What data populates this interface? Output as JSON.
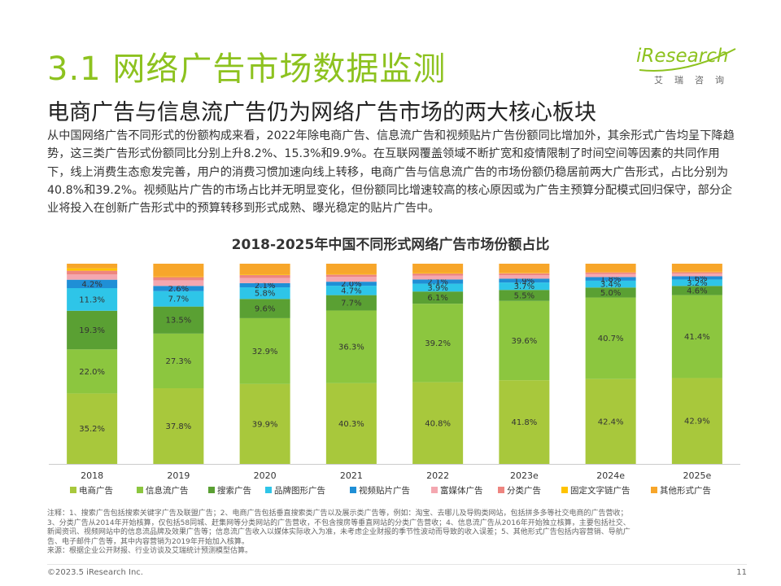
{
  "header": {
    "section_title": "3.1 网络广告市场数据监测",
    "subtitle": "电商广告与信息流广告仍为网络广告市场的两大核心板块",
    "logo_text": "iResearch",
    "logo_subtext": "艾瑞咨询"
  },
  "body_text": "从中国网络广告不同形式的份额构成来看，2022年除电商广告、信息流广告和视频贴片广告份额同比增加外，其余形式广告均呈下降趋势，这三类广告形式份额同比分别上升8.2%、15.3%和9.9%。在互联网覆盖领域不断扩宽和疫情限制了时间空间等因素的共同作用下，线上消费生态愈发完善，用户的消费习惯加速向线上转移，电商广告与信息流广告的市场份额仍稳居前两大广告形式，占比分别为40.8%和39.2%。视频贴片广告的市场占比并无明显变化，但份额同比增速较高的核心原因或为广告主预算分配模式回归保守，部分企业将投入在创新广告形式中的预算转移到形式成熟、曝光稳定的贴片广告中。",
  "chart_data": {
    "type": "bar",
    "stacked": true,
    "title": "2018-2025年中国不同形式网络广告市场份额占比",
    "categories": [
      "2018",
      "2019",
      "2020",
      "2021",
      "2022",
      "2023e",
      "2024e",
      "2025e"
    ],
    "ylim": [
      0,
      100
    ],
    "legend_position": "bottom",
    "series": [
      {
        "name": "电商广告",
        "color": "#a8c83c",
        "values": [
          35.2,
          37.8,
          39.9,
          40.3,
          40.8,
          41.8,
          42.4,
          42.9
        ],
        "labels": [
          "35.2%",
          "37.8%",
          "39.9%",
          "40.3%",
          "40.8%",
          "41.8%",
          "42.4%",
          "42.9%"
        ]
      },
      {
        "name": "信息流广告",
        "color": "#8cc63f",
        "values": [
          22.0,
          27.3,
          32.9,
          36.3,
          39.2,
          39.6,
          40.7,
          41.4
        ],
        "labels": [
          "22.0%",
          "27.3%",
          "32.9%",
          "36.3%",
          "39.2%",
          "39.6%",
          "40.7%",
          "41.4%"
        ]
      },
      {
        "name": "搜索广告",
        "color": "#5aa033",
        "values": [
          19.3,
          13.5,
          9.6,
          7.7,
          6.1,
          5.5,
          5.0,
          4.6
        ],
        "labels": [
          "19.3%",
          "13.5%",
          "9.6%",
          "7.7%",
          "6.1%",
          "5.5%",
          "5.0%",
          "4.6%"
        ]
      },
      {
        "name": "品牌图形广告",
        "color": "#2ec5e8",
        "values": [
          11.3,
          7.7,
          5.8,
          4.7,
          3.9,
          3.7,
          3.4,
          3.2
        ],
        "labels": [
          "11.3%",
          "7.7%",
          "5.8%",
          "4.7%",
          "3.9%",
          "3.7%",
          "3.4%",
          "3.2%"
        ]
      },
      {
        "name": "视频贴片广告",
        "color": "#1f8fd6",
        "values": [
          4.2,
          2.6,
          2.1,
          2.0,
          2.1,
          1.9,
          1.8,
          1.6
        ],
        "labels": [
          "4.2%",
          "2.6%",
          "2.1%",
          "2.0%",
          "2.1%",
          "1.9%",
          "1.8%",
          "1.6%"
        ]
      },
      {
        "name": "富媒体广告",
        "color": "#f4a7b0",
        "values": [
          2.6,
          2.8,
          2.6,
          2.4,
          2.0,
          1.8,
          1.6,
          1.4
        ],
        "labels": [
          "",
          "",
          "",
          "",
          "",
          "",
          "",
          ""
        ]
      },
      {
        "name": "分类广告",
        "color": "#ee8580",
        "values": [
          1.9,
          1.6,
          1.4,
          1.2,
          1.0,
          0.9,
          0.8,
          0.7
        ],
        "labels": [
          "",
          "",
          "",
          "",
          "",
          "",
          "",
          ""
        ]
      },
      {
        "name": "固定文字链广告",
        "color": "#ffc300",
        "values": [
          1.2,
          0.3,
          0.3,
          0.3,
          0.3,
          0.2,
          0.2,
          0.2
        ],
        "labels": [
          "",
          "",
          "",
          "",
          "",
          "",
          "",
          ""
        ]
      },
      {
        "name": "其他形式广告",
        "color": "#f7a62a",
        "values": [
          2.3,
          6.4,
          5.4,
          5.1,
          4.6,
          4.6,
          4.1,
          4.0
        ],
        "labels": [
          "",
          "",
          "",
          "",
          "",
          "",
          "",
          ""
        ]
      }
    ]
  },
  "notes": [
    "注释：1、搜索广告包括搜索关键字广告及联盟广告；2、电商广告包括垂直搜索类广告以及展示类广告等，例如：淘宝、去哪儿及导购类网站，包括拼多多等社交电商的广告营收；",
    "3、分类广告从2014年开始核算，仅包括58同城、赶集网等分类网站的广告营收，不包含搜房等垂直网站的分类广告营收；4、信息流广告从2016年开始独立核算，主要包括社交、",
    "新闻资讯、视频网站中的信息流品牌及效果广告等；信息流广告收入以媒体实际收入为准，未考虑企业财报的季节性波动而导致的收入误差；5、其他形式广告包括内容营销、导航广",
    "告、电子邮件广告等，其中内容营销为2019年开始加入核算。",
    "来源：根据企业公开财报、行业访谈及艾瑞统计预测模型估算。"
  ],
  "footer": {
    "copyright": "©2023.5 iResearch Inc.",
    "page_number": "11"
  }
}
